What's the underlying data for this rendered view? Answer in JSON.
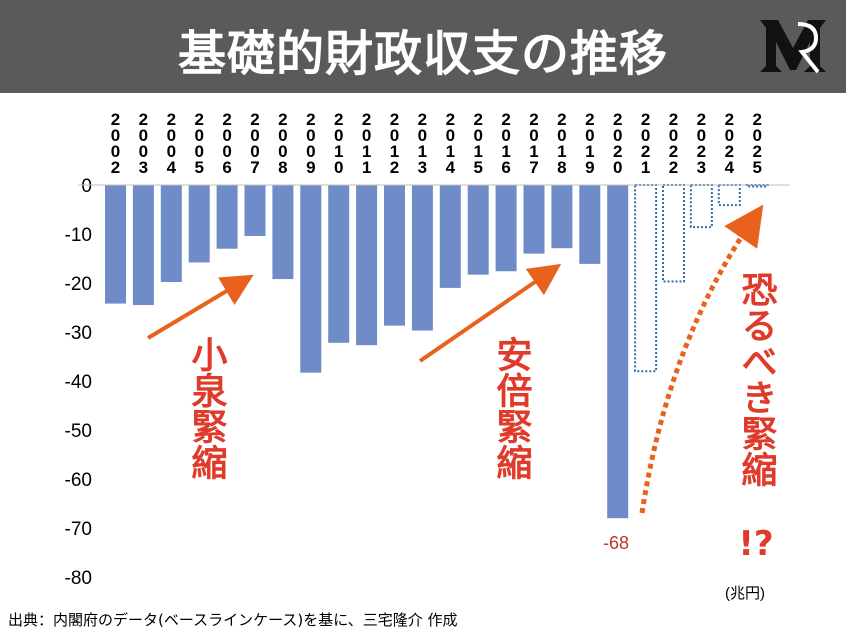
{
  "title": "基礎的財政収支の推移",
  "source": "出典：内閣府のデータ(ベースラインケース)を基に、三宅隆介 作成",
  "unit_label": "(兆円)",
  "logo_icon": "mr-monogram-icon",
  "colors": {
    "title_bg": "#5a5a5a",
    "title_text": "#ffffff",
    "bar_fill": "#6f8cc8",
    "projection_stroke": "#2e6db0",
    "annotation": "#e03a2a",
    "arrow": "#e8621e"
  },
  "annotations": {
    "koizumi": "小泉緊縮",
    "abe": "安倍緊縮",
    "future": "恐るべき緊縮",
    "future_mark": "!?",
    "min_label": "-68"
  },
  "chart_data": {
    "type": "bar",
    "categories": [
      "2002",
      "2003",
      "2004",
      "2005",
      "2006",
      "2007",
      "2008",
      "2009",
      "2010",
      "2011",
      "2012",
      "2013",
      "2014",
      "2015",
      "2016",
      "2017",
      "2018",
      "2019",
      "2020",
      "2021",
      "2022",
      "2023",
      "2024",
      "2025"
    ],
    "values": [
      -24.2,
      -24.5,
      -19.8,
      -15.8,
      -13.0,
      -10.4,
      -19.2,
      -38.3,
      -32.2,
      -32.7,
      -28.7,
      -29.7,
      -21.0,
      -18.3,
      -17.6,
      -14.0,
      -12.9,
      -16.1,
      -68.0,
      -38.0,
      -19.7,
      -8.6,
      -4.1,
      -0.3
    ],
    "projected": [
      false,
      false,
      false,
      false,
      false,
      false,
      false,
      false,
      false,
      false,
      false,
      false,
      false,
      false,
      false,
      false,
      false,
      false,
      false,
      true,
      true,
      true,
      true,
      true
    ],
    "ylim": [
      -80,
      0
    ],
    "yticks": [
      "0",
      "-10",
      "-20",
      "-30",
      "-40",
      "-50",
      "-60",
      "-70",
      "-80"
    ],
    "grid": false,
    "xlabel": "",
    "ylabel": ""
  }
}
